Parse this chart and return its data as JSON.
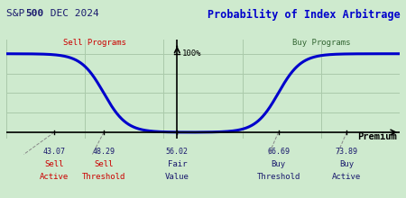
{
  "title_left_sp": "S&P ",
  "title_left_bold": "500",
  "title_left_rest": " DEC 2024",
  "title_right": "Probability of Index Arbitrage",
  "sell_active_val": 43.07,
  "sell_threshold_val": 48.29,
  "fair_value_val": 56.02,
  "buy_threshold_val": 66.69,
  "buy_active_val": 73.89,
  "label_sell_programs": "Sell Programs",
  "label_buy_programs": "Buy Programs",
  "label_100": "100%",
  "label_premium": "Premium",
  "bg_color": "#ceeace",
  "grid_color": "#aacaaa",
  "curve_color": "#0000cc",
  "axis_color": "#000000",
  "title_left_color": "#1a1a6e",
  "title_right_color": "#0000cc",
  "sell_programs_color": "#cc0000",
  "buy_programs_color": "#336633",
  "bottom_val_color": "#1a1a6e",
  "bottom_label_red_color": "#cc0000",
  "bottom_label_dark_color": "#1a1a6e",
  "xmin": 38.0,
  "xmax": 79.5,
  "ymin": -0.08,
  "ymax": 1.18,
  "sigmoid_scale": 1.2,
  "curve_linewidth": 2.2
}
